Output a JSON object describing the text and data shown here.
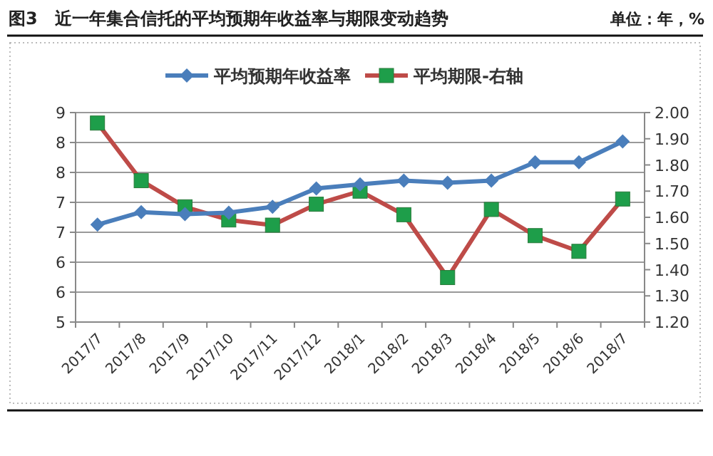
{
  "chart_data": {
    "type": "line",
    "title": "图3　近一年集合信托的平均预期年收益率与期限变动趋势",
    "subtitle": "单位：年，%",
    "categories": [
      "2017/7",
      "2017/8",
      "2017/9",
      "2017/10",
      "2017/11",
      "2017/12",
      "2018/1",
      "2018/2",
      "2018/3",
      "2018/4",
      "2018/5",
      "2018/6",
      "2018/7"
    ],
    "series": [
      {
        "name": "平均预期年收益率",
        "color": "#4a7ebb",
        "marker": "diamond",
        "values": [
          6.86,
          7.1,
          7.06,
          7.09,
          7.2,
          7.55,
          7.63,
          7.7,
          7.66,
          7.7,
          8.05,
          8.05,
          8.45
        ]
      },
      {
        "name": "平均期限-右轴",
        "color": "#be4b48",
        "colors": [
          "#1e9e4a",
          "#1e9e4a",
          "#1e9e4a",
          "#1e9e4a",
          "#1e9e4a",
          "#1e9e4a",
          "#1e9e4a",
          "#1e9e4a",
          "#1e9e4a",
          "#1e9e4a",
          "#1e9e4a",
          "#1e9e4a",
          "#1e9e4a"
        ],
        "marker": "square",
        "axis": "y2",
        "values": [
          1.96,
          1.74,
          1.64,
          1.59,
          1.57,
          1.65,
          1.7,
          1.61,
          1.37,
          1.63,
          1.53,
          1.47,
          1.67
        ]
      }
    ],
    "ylim": [
      5,
      9
    ],
    "yticks": [
      {
        "value": 9,
        "label": "9"
      },
      {
        "value": 8.4286,
        "label": "8"
      },
      {
        "value": 7.8571,
        "label": "8"
      },
      {
        "value": 7.2857,
        "label": "7"
      },
      {
        "value": 6.7143,
        "label": "7"
      },
      {
        "value": 6.1429,
        "label": "6"
      },
      {
        "value": 5.5714,
        "label": "6"
      },
      {
        "value": 5,
        "label": "5"
      }
    ],
    "y2lim": [
      1.2,
      2.0
    ],
    "y2ticks": [
      {
        "value": 2.0,
        "label": "2.00"
      },
      {
        "value": 1.9,
        "label": "1.90"
      },
      {
        "value": 1.8,
        "label": "1.80"
      },
      {
        "value": 1.7,
        "label": "1.70"
      },
      {
        "value": 1.6,
        "label": "1.60"
      },
      {
        "value": 1.5,
        "label": "1.50"
      },
      {
        "value": 1.4,
        "label": "1.40"
      },
      {
        "value": 1.3,
        "label": "1.30"
      },
      {
        "value": 1.2,
        "label": "1.20"
      }
    ],
    "grid": "y",
    "legend": "top",
    "line_style": "solid"
  }
}
